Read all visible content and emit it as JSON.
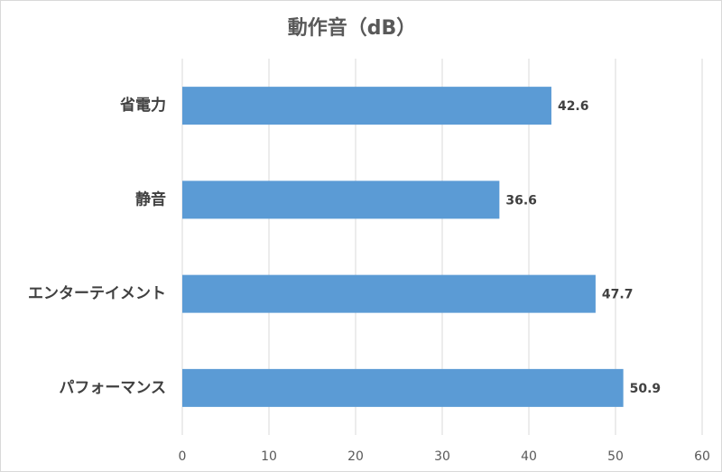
{
  "chart_data": {
    "type": "hbar",
    "title": "動作音（dB）",
    "categories": [
      "省電力",
      "静音",
      "エンターテイメント",
      "パフォーマンス"
    ],
    "values": [
      42.6,
      36.6,
      47.7,
      50.9
    ],
    "color": "#5b9bd5",
    "xlim": [
      0,
      60
    ],
    "xticks": [
      0,
      10,
      20,
      30,
      40,
      50,
      60
    ],
    "grid": true
  }
}
